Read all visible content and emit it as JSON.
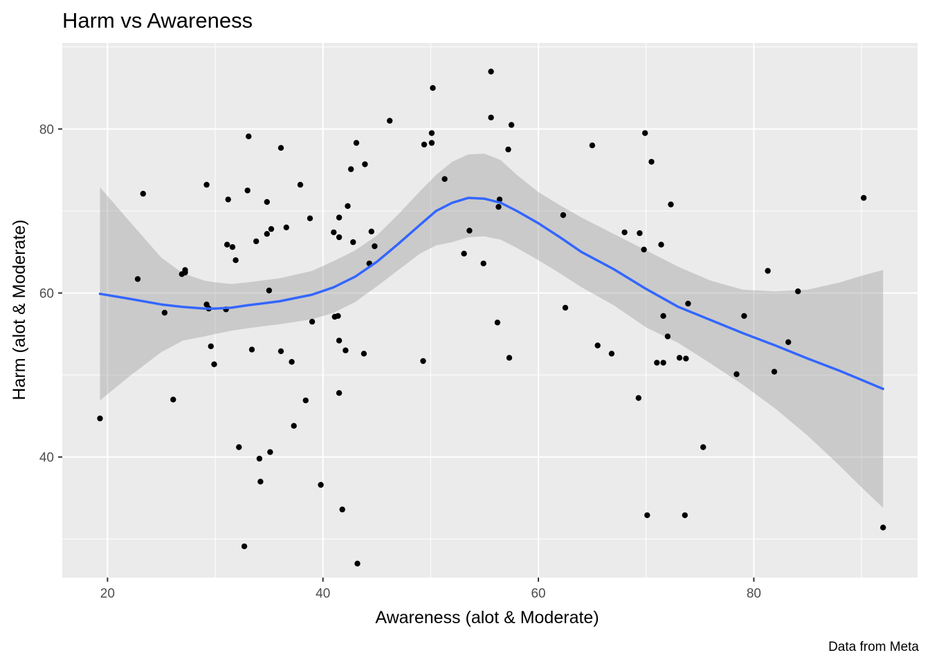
{
  "chart_data": {
    "type": "scatter",
    "title": "Harm vs Awareness",
    "xlabel": "Awareness (alot & Moderate)",
    "ylabel": "Harm (alot & Moderate)",
    "caption": "Data from Meta",
    "xlim": [
      15.8,
      95.2
    ],
    "ylim": [
      25.3,
      90.5
    ],
    "x_ticks": [
      20,
      40,
      60,
      80
    ],
    "y_ticks": [
      40,
      60,
      80
    ],
    "x_tick_labels": [
      "20",
      "40",
      "60",
      "80"
    ],
    "y_tick_labels": [
      "40",
      "60",
      "80"
    ],
    "grid": true,
    "colors": {
      "panel": "#ebebeb",
      "grid": "#ffffff",
      "points": "#000000",
      "smooth_line": "#3366ff",
      "ribbon": "#999999"
    },
    "points": [
      {
        "x": 19.3,
        "y": 44.7
      },
      {
        "x": 22.8,
        "y": 61.7
      },
      {
        "x": 23.3,
        "y": 72.1
      },
      {
        "x": 25.3,
        "y": 57.6
      },
      {
        "x": 26.1,
        "y": 47.0
      },
      {
        "x": 26.9,
        "y": 62.3
      },
      {
        "x": 27.2,
        "y": 62.5
      },
      {
        "x": 27.2,
        "y": 62.8
      },
      {
        "x": 29.2,
        "y": 73.2
      },
      {
        "x": 29.2,
        "y": 58.6
      },
      {
        "x": 29.4,
        "y": 58.1
      },
      {
        "x": 29.6,
        "y": 53.5
      },
      {
        "x": 29.9,
        "y": 51.3
      },
      {
        "x": 31.0,
        "y": 58.0
      },
      {
        "x": 31.1,
        "y": 65.9
      },
      {
        "x": 31.2,
        "y": 71.4
      },
      {
        "x": 31.6,
        "y": 65.6
      },
      {
        "x": 31.9,
        "y": 64.0
      },
      {
        "x": 32.2,
        "y": 41.2
      },
      {
        "x": 32.7,
        "y": 29.1
      },
      {
        "x": 33.0,
        "y": 72.5
      },
      {
        "x": 33.1,
        "y": 79.1
      },
      {
        "x": 33.4,
        "y": 53.1
      },
      {
        "x": 33.8,
        "y": 66.3
      },
      {
        "x": 34.1,
        "y": 39.8
      },
      {
        "x": 34.2,
        "y": 37.0
      },
      {
        "x": 34.8,
        "y": 67.2
      },
      {
        "x": 34.8,
        "y": 71.1
      },
      {
        "x": 35.0,
        "y": 60.3
      },
      {
        "x": 35.2,
        "y": 67.8
      },
      {
        "x": 35.1,
        "y": 40.6
      },
      {
        "x": 36.1,
        "y": 77.7
      },
      {
        "x": 36.1,
        "y": 52.9
      },
      {
        "x": 36.6,
        "y": 68.0
      },
      {
        "x": 37.1,
        "y": 51.6
      },
      {
        "x": 37.3,
        "y": 43.8
      },
      {
        "x": 37.9,
        "y": 73.2
      },
      {
        "x": 38.4,
        "y": 46.9
      },
      {
        "x": 38.8,
        "y": 69.1
      },
      {
        "x": 39.0,
        "y": 56.5
      },
      {
        "x": 39.8,
        "y": 36.6
      },
      {
        "x": 41.0,
        "y": 67.4
      },
      {
        "x": 41.1,
        "y": 57.1
      },
      {
        "x": 41.4,
        "y": 57.2
      },
      {
        "x": 41.5,
        "y": 54.2
      },
      {
        "x": 41.5,
        "y": 47.8
      },
      {
        "x": 41.5,
        "y": 66.8
      },
      {
        "x": 41.5,
        "y": 69.2
      },
      {
        "x": 41.8,
        "y": 33.6
      },
      {
        "x": 42.1,
        "y": 53.0
      },
      {
        "x": 42.3,
        "y": 70.6
      },
      {
        "x": 42.6,
        "y": 75.1
      },
      {
        "x": 42.8,
        "y": 66.2
      },
      {
        "x": 43.1,
        "y": 78.3
      },
      {
        "x": 43.2,
        "y": 27.0
      },
      {
        "x": 43.8,
        "y": 52.6
      },
      {
        "x": 43.9,
        "y": 75.7
      },
      {
        "x": 44.3,
        "y": 63.6
      },
      {
        "x": 44.5,
        "y": 67.5
      },
      {
        "x": 44.8,
        "y": 65.7
      },
      {
        "x": 46.2,
        "y": 81.0
      },
      {
        "x": 49.3,
        "y": 51.7
      },
      {
        "x": 49.4,
        "y": 78.1
      },
      {
        "x": 50.1,
        "y": 79.5
      },
      {
        "x": 50.1,
        "y": 78.3
      },
      {
        "x": 50.2,
        "y": 85.0
      },
      {
        "x": 51.3,
        "y": 73.9
      },
      {
        "x": 53.1,
        "y": 64.8
      },
      {
        "x": 53.6,
        "y": 67.6
      },
      {
        "x": 54.9,
        "y": 63.6
      },
      {
        "x": 55.6,
        "y": 87.0
      },
      {
        "x": 55.6,
        "y": 81.4
      },
      {
        "x": 56.2,
        "y": 56.4
      },
      {
        "x": 56.3,
        "y": 70.5
      },
      {
        "x": 56.4,
        "y": 71.4
      },
      {
        "x": 57.2,
        "y": 77.5
      },
      {
        "x": 57.3,
        "y": 52.1
      },
      {
        "x": 57.5,
        "y": 80.5
      },
      {
        "x": 62.3,
        "y": 69.5
      },
      {
        "x": 62.5,
        "y": 58.2
      },
      {
        "x": 65.0,
        "y": 78.0
      },
      {
        "x": 65.5,
        "y": 53.6
      },
      {
        "x": 66.8,
        "y": 52.6
      },
      {
        "x": 68.0,
        "y": 67.4
      },
      {
        "x": 69.3,
        "y": 47.2
      },
      {
        "x": 69.4,
        "y": 67.3
      },
      {
        "x": 69.9,
        "y": 79.5
      },
      {
        "x": 69.8,
        "y": 65.3
      },
      {
        "x": 70.1,
        "y": 32.9
      },
      {
        "x": 70.5,
        "y": 76.0
      },
      {
        "x": 71.0,
        "y": 51.5
      },
      {
        "x": 71.4,
        "y": 65.9
      },
      {
        "x": 71.6,
        "y": 57.2
      },
      {
        "x": 71.6,
        "y": 51.5
      },
      {
        "x": 72.0,
        "y": 54.7
      },
      {
        "x": 72.3,
        "y": 70.8
      },
      {
        "x": 73.1,
        "y": 52.1
      },
      {
        "x": 73.6,
        "y": 32.9
      },
      {
        "x": 73.7,
        "y": 52.0
      },
      {
        "x": 73.9,
        "y": 58.7
      },
      {
        "x": 75.3,
        "y": 41.2
      },
      {
        "x": 78.4,
        "y": 50.1
      },
      {
        "x": 79.1,
        "y": 57.2
      },
      {
        "x": 81.3,
        "y": 62.7
      },
      {
        "x": 81.9,
        "y": 50.4
      },
      {
        "x": 83.2,
        "y": 54.0
      },
      {
        "x": 84.1,
        "y": 60.2
      },
      {
        "x": 90.2,
        "y": 71.6
      },
      {
        "x": 92.0,
        "y": 31.4
      }
    ],
    "smooth": {
      "x": [
        19.3,
        22.0,
        25.0,
        27.0,
        29.0,
        30.0,
        31.5,
        33.0,
        36.0,
        39.0,
        41.0,
        43.0,
        45.0,
        47.0,
        49.0,
        50.5,
        52.0,
        53.5,
        55.0,
        56.5,
        58.0,
        60.0,
        62.0,
        64.0,
        67.0,
        70.0,
        73.0,
        76.0,
        79.0,
        82.0,
        85.0,
        88.0,
        90.0,
        92.0
      ],
      "y": [
        59.9,
        59.3,
        58.6,
        58.3,
        58.1,
        58.1,
        58.2,
        58.5,
        59.0,
        59.8,
        60.7,
        62.0,
        63.8,
        66.0,
        68.3,
        70.0,
        71.0,
        71.6,
        71.5,
        71.0,
        70.0,
        68.5,
        66.8,
        65.0,
        62.9,
        60.5,
        58.3,
        56.7,
        55.1,
        53.6,
        52.0,
        50.5,
        49.4,
        48.3
      ],
      "lower": [
        46.9,
        49.8,
        52.8,
        54.2,
        54.7,
        55.0,
        55.4,
        55.7,
        56.2,
        56.8,
        57.6,
        58.9,
        60.8,
        62.8,
        64.8,
        65.8,
        66.2,
        66.8,
        66.9,
        66.5,
        65.5,
        64.0,
        62.4,
        60.7,
        58.5,
        55.8,
        53.9,
        51.4,
        48.8,
        45.9,
        42.6,
        38.9,
        36.3,
        33.8
      ],
      "upper": [
        72.9,
        68.8,
        64.3,
        62.4,
        61.5,
        61.3,
        61.1,
        61.3,
        61.8,
        62.7,
        63.9,
        65.2,
        67.0,
        69.6,
        72.4,
        74.4,
        76.0,
        76.9,
        77.0,
        76.2,
        74.4,
        72.3,
        70.7,
        69.2,
        67.2,
        65.2,
        63.2,
        61.5,
        60.4,
        60.2,
        60.4,
        61.3,
        62.1,
        62.8
      ]
    }
  }
}
